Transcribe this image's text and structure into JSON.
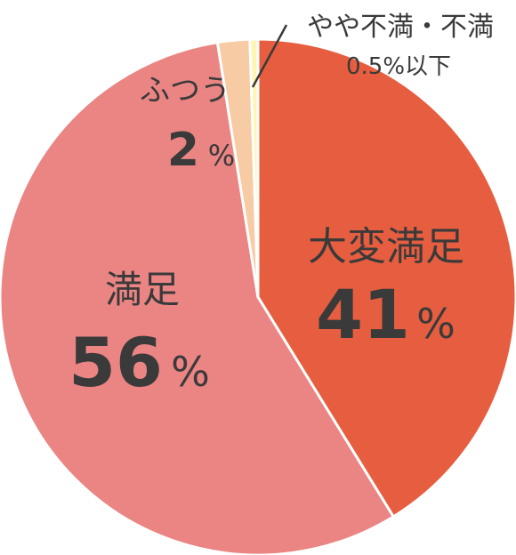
{
  "chart_data": {
    "type": "pie",
    "start_angle_deg": 0,
    "direction": "clockwise",
    "slices": [
      {
        "label": "大変満足",
        "value": 41,
        "display": "41",
        "unit": "%",
        "color": "#e65e3f"
      },
      {
        "label": "満足",
        "value": 56,
        "display": "56",
        "unit": "%",
        "color": "#eb8584"
      },
      {
        "label": "ふつう",
        "value": 2,
        "display": "2",
        "unit": "%",
        "color": "#f7cba3"
      },
      {
        "label": "やや不満・不満",
        "value": 0.5,
        "display": "0.5%以下",
        "unit": "",
        "color": "#fff5b3"
      }
    ]
  }
}
